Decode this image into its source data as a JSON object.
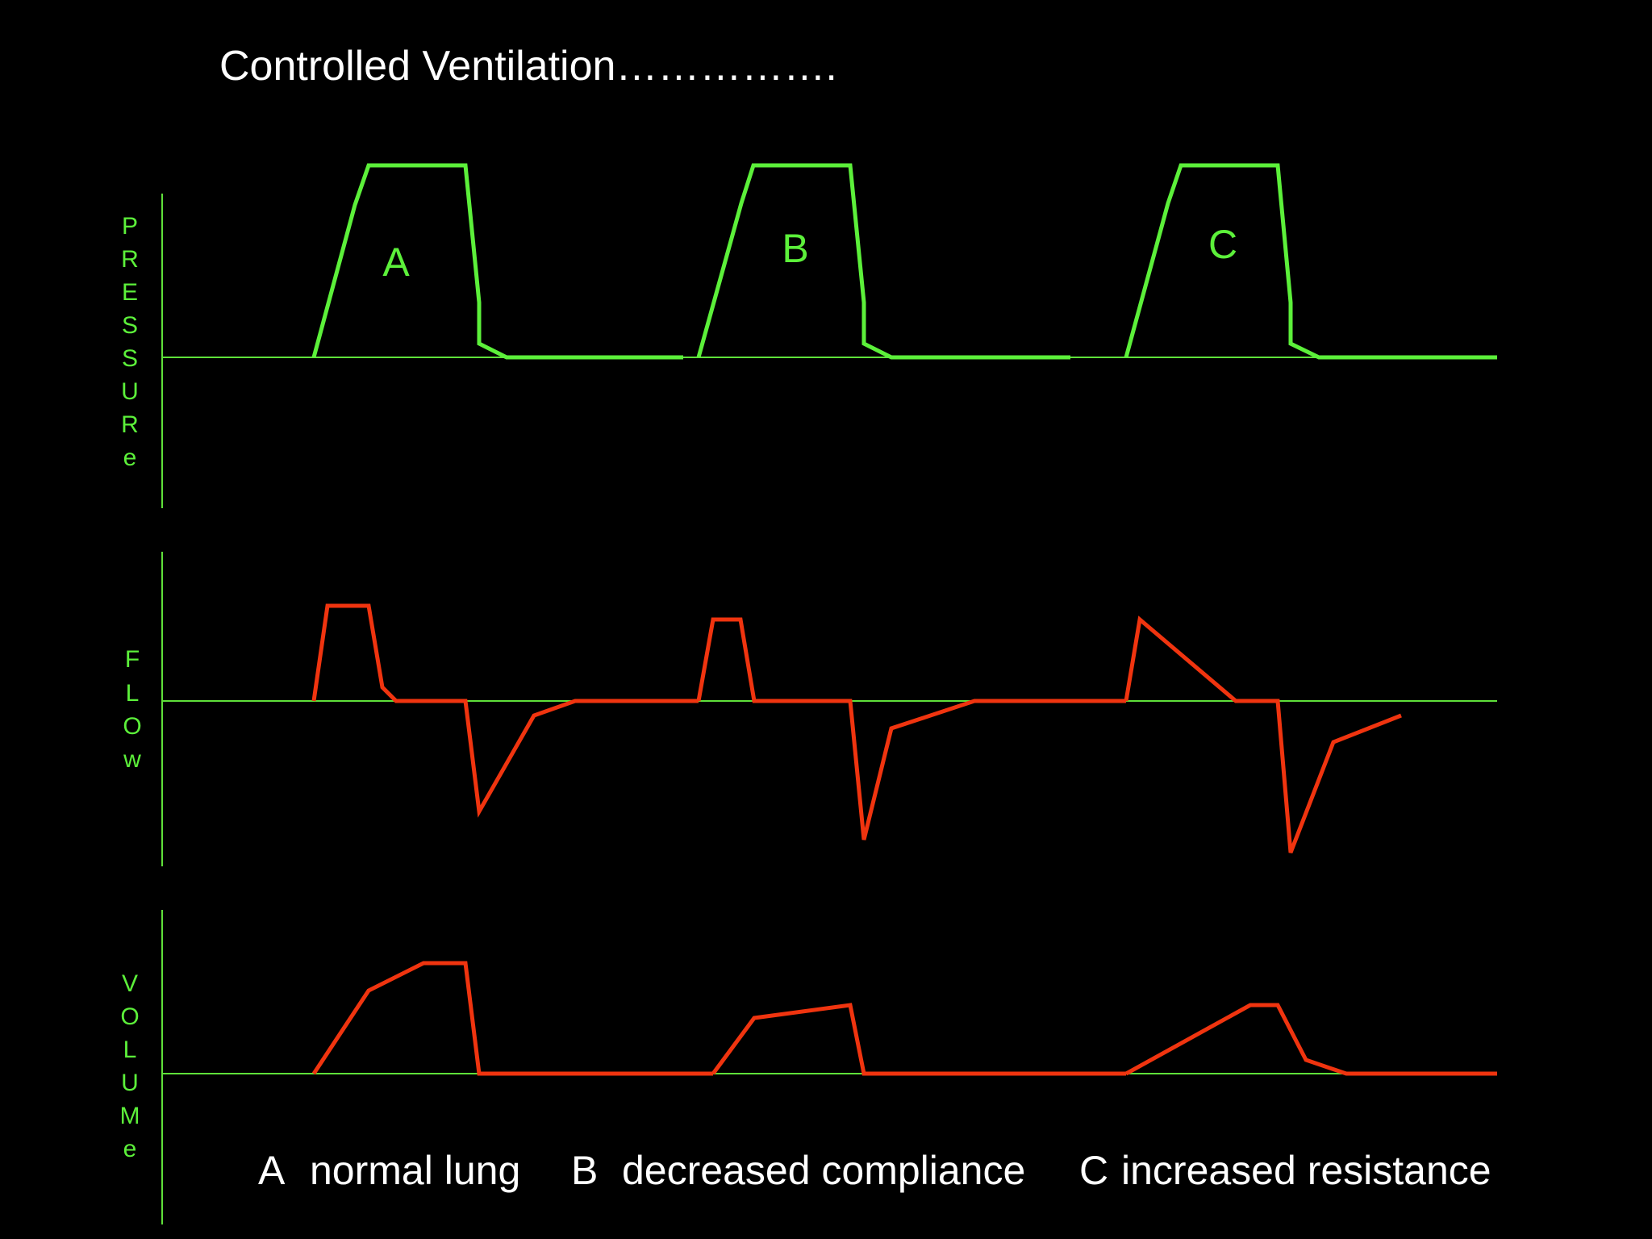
{
  "title": "Controlled Ventilation…………….",
  "colors": {
    "background": "#000000",
    "axis": "#5fe03a",
    "pressure_trace": "#5cf03a",
    "flow_volume_trace": "#f0340f",
    "label_text": "#5cf03a",
    "title_text": "#ffffff"
  },
  "panels": [
    {
      "id": "pressure",
      "axis_label": [
        "P",
        "R",
        "E",
        "S",
        "S",
        "U",
        "R",
        "e"
      ]
    },
    {
      "id": "flow",
      "axis_label": [
        "F",
        "L",
        "O",
        "w"
      ]
    },
    {
      "id": "volume",
      "axis_label": [
        "V",
        "O",
        "L",
        "U",
        "M",
        "e"
      ]
    }
  ],
  "wave_labels": [
    "A",
    "B",
    "C"
  ],
  "legend": [
    {
      "key": "A",
      "text": "normal lung"
    },
    {
      "key": "B",
      "text": "decreased compliance"
    },
    {
      "key": "C",
      "text": "increased resistance"
    }
  ]
}
